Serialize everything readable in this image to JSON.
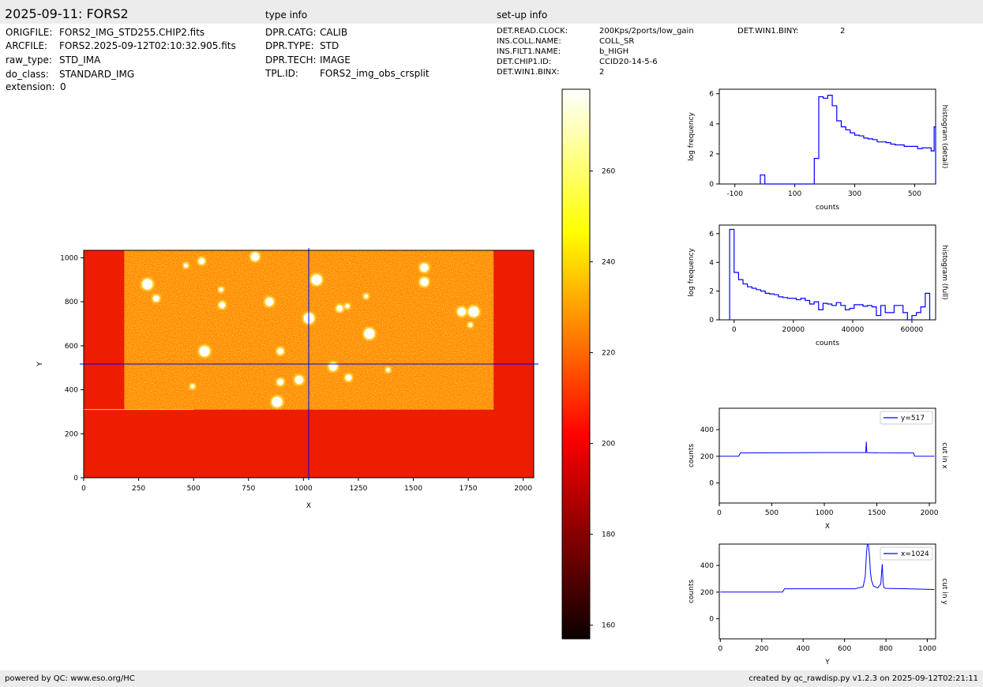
{
  "header": {
    "title": "2025-09-11: FORS2",
    "type_info_title": "type info",
    "setup_info_title": "set-up info"
  },
  "file_info": [
    {
      "key": "ORIGFILE:",
      "value": "FORS2_IMG_STD255.CHIP2.fits"
    },
    {
      "key": "ARCFILE:",
      "value": "FORS2.2025-09-12T02:10:32.905.fits"
    },
    {
      "key": "raw_type:",
      "value": "STD_IMA"
    },
    {
      "key": "do_class:",
      "value": "STANDARD_IMG"
    },
    {
      "key": "extension:",
      "value": "0"
    }
  ],
  "type_info": [
    {
      "key": "DPR.CATG:",
      "value": "CALIB"
    },
    {
      "key": "DPR.TYPE:",
      "value": "STD"
    },
    {
      "key": "DPR.TECH:",
      "value": "IMAGE"
    },
    {
      "key": "TPL.ID:",
      "value": "FORS2_img_obs_crsplit"
    }
  ],
  "setup_info": [
    {
      "key": "DET.READ.CLOCK:",
      "value": "200Kps/2ports/low_gain"
    },
    {
      "key": "INS.COLL.NAME:",
      "value": "COLL_SR"
    },
    {
      "key": "INS.FILT1.NAME:",
      "value": "b_HIGH"
    },
    {
      "key": "DET.CHIP1.ID:",
      "value": "CCID20-14-5-6"
    },
    {
      "key": "DET.WIN1.BINX:",
      "value": "2"
    }
  ],
  "setup_info_extra": [
    {
      "key": "DET.WIN1.BINY:",
      "value": "2"
    }
  ],
  "footer": {
    "left": "powered by QC: www.eso.org/HC",
    "right": "created by qc_rawdisp.py v1.2.3 on 2025-09-12T02:21:11"
  },
  "colors": {
    "series": "#0000ff",
    "header_bar": "#ececec",
    "image_background": "#ee1c00",
    "image_field": "#ff8a00"
  },
  "chart_data": [
    {
      "type": "heatmap",
      "title": "",
      "xlabel": "X",
      "ylabel": "Y",
      "xlim": [
        0,
        2048
      ],
      "ylim": [
        0,
        1034
      ],
      "xticks": [
        0,
        250,
        500,
        750,
        1000,
        1250,
        1500,
        1750,
        2000
      ],
      "yticks": [
        0,
        200,
        400,
        600,
        800,
        1000
      ],
      "crosshair": {
        "x": 1024,
        "y": 517
      },
      "illuminated_region": {
        "x": [
          185,
          1865
        ],
        "y": [
          310,
          1034
        ]
      },
      "stars": [
        [
          465,
          965
        ],
        [
          537,
          985
        ],
        [
          780,
          1005
        ],
        [
          1060,
          900
        ],
        [
          625,
          855
        ],
        [
          630,
          785
        ],
        [
          845,
          800
        ],
        [
          1025,
          725
        ],
        [
          1200,
          780
        ],
        [
          1165,
          770
        ],
        [
          1550,
          890
        ],
        [
          550,
          575
        ],
        [
          495,
          415
        ],
        [
          895,
          435
        ],
        [
          980,
          445
        ],
        [
          880,
          345
        ],
        [
          1385,
          490
        ],
        [
          1205,
          455
        ],
        [
          1720,
          755
        ],
        [
          1775,
          755
        ],
        [
          1760,
          695
        ],
        [
          330,
          815
        ],
        [
          1550,
          955
        ],
        [
          290,
          880
        ],
        [
          1285,
          825
        ],
        [
          895,
          575
        ],
        [
          1135,
          505
        ],
        [
          1300,
          655
        ]
      ],
      "colorbar": {
        "min": 157,
        "max": 278,
        "ticks": [
          160,
          180,
          200,
          220,
          240,
          260
        ],
        "colormap": "hot"
      }
    },
    {
      "type": "bar",
      "title": "",
      "xlabel": "counts",
      "ylabel": "log frequency",
      "side_label": "histogram (detail)",
      "xlim": [
        -152,
        570
      ],
      "ylim": [
        0,
        6.3
      ],
      "xticks": [
        -100,
        100,
        300,
        500
      ],
      "xtick_labels": [
        "-100",
        "100",
        "300",
        "500"
      ],
      "yticks": [
        0,
        2,
        4,
        6
      ],
      "bins": [
        [
          -15,
          0.6
        ],
        [
          0,
          0
        ],
        [
          165,
          1.7
        ],
        [
          180,
          5.8
        ],
        [
          195,
          5.7
        ],
        [
          210,
          5.9
        ],
        [
          225,
          5.2
        ],
        [
          240,
          4.2
        ],
        [
          255,
          3.8
        ],
        [
          270,
          3.6
        ],
        [
          285,
          3.4
        ],
        [
          300,
          3.25
        ],
        [
          315,
          3.2
        ],
        [
          330,
          3.05
        ],
        [
          345,
          3.0
        ],
        [
          360,
          2.95
        ],
        [
          375,
          2.8
        ],
        [
          390,
          2.8
        ],
        [
          405,
          2.75
        ],
        [
          420,
          2.65
        ],
        [
          435,
          2.6
        ],
        [
          450,
          2.6
        ],
        [
          465,
          2.5
        ],
        [
          480,
          2.5
        ],
        [
          495,
          2.5
        ],
        [
          510,
          2.35
        ],
        [
          525,
          2.4
        ],
        [
          540,
          2.4
        ],
        [
          555,
          2.2
        ],
        [
          565,
          3.8
        ]
      ],
      "bin_end": 570
    },
    {
      "type": "bar",
      "title": "",
      "xlabel": "counts",
      "ylabel": "log frequency",
      "side_label": "histogram (full)",
      "xlim": [
        -5000,
        68000
      ],
      "ylim": [
        0,
        6.6
      ],
      "xticks": [
        0,
        20000,
        40000,
        60000
      ],
      "xtick_labels": [
        "0",
        "20000",
        "40000",
        "60000"
      ],
      "yticks": [
        0,
        2,
        4,
        6
      ],
      "bins": [
        [
          -1500,
          6.3
        ],
        [
          0,
          3.3
        ],
        [
          1500,
          2.8
        ],
        [
          3000,
          2.5
        ],
        [
          4500,
          2.3
        ],
        [
          6000,
          2.2
        ],
        [
          7500,
          2.1
        ],
        [
          9000,
          2.0
        ],
        [
          10500,
          1.85
        ],
        [
          12000,
          1.8
        ],
        [
          13500,
          1.75
        ],
        [
          15000,
          1.6
        ],
        [
          16500,
          1.55
        ],
        [
          18000,
          1.5
        ],
        [
          19500,
          1.5
        ],
        [
          21000,
          1.4
        ],
        [
          22500,
          1.5
        ],
        [
          24000,
          1.35
        ],
        [
          25500,
          1.1
        ],
        [
          27000,
          1.25
        ],
        [
          28500,
          0.7
        ],
        [
          30000,
          1.15
        ],
        [
          31500,
          1.1
        ],
        [
          33000,
          1.0
        ],
        [
          34500,
          1.2
        ],
        [
          36000,
          1.0
        ],
        [
          37500,
          0.7
        ],
        [
          39000,
          0.8
        ],
        [
          40500,
          1.05
        ],
        [
          42000,
          1.05
        ],
        [
          43500,
          0.95
        ],
        [
          45000,
          1.0
        ],
        [
          46500,
          0.9
        ],
        [
          48000,
          0.3
        ],
        [
          49500,
          1.0
        ],
        [
          51000,
          0.5
        ],
        [
          52500,
          0.5
        ],
        [
          54000,
          1.0
        ],
        [
          55500,
          1.0
        ],
        [
          57000,
          0.5
        ],
        [
          58500,
          0.0
        ],
        [
          60000,
          0.3
        ],
        [
          61500,
          0.5
        ],
        [
          63000,
          0.9
        ],
        [
          64500,
          1.85
        ]
      ],
      "bin_end": 66000
    },
    {
      "type": "line",
      "title": "",
      "xlabel": "X",
      "ylabel": "counts",
      "side_label": "cut in x",
      "legend": "y=517",
      "legend_position": "upper right",
      "xlim": [
        0,
        2060
      ],
      "ylim": [
        -150,
        560
      ],
      "xticks": [
        0,
        500,
        1000,
        1500,
        2000
      ],
      "yticks": [
        0,
        200,
        400
      ],
      "series": [
        {
          "name": "y=517",
          "x": [
            0,
            185,
            200,
            1000,
            1395,
            1400,
            1405,
            1500,
            1850,
            1860,
            2048
          ],
          "y": [
            200,
            201,
            225,
            228,
            228,
            310,
            228,
            226,
            225,
            200,
            200
          ]
        }
      ]
    },
    {
      "type": "line",
      "title": "",
      "xlabel": "Y",
      "ylabel": "counts",
      "side_label": "cut in y",
      "legend": "x=1024",
      "legend_position": "upper right",
      "xlim": [
        -5,
        1040
      ],
      "ylim": [
        -150,
        560
      ],
      "xticks": [
        0,
        200,
        400,
        600,
        800,
        1000
      ],
      "yticks": [
        0,
        200,
        400
      ],
      "series": [
        {
          "name": "x=1024",
          "x": [
            0,
            300,
            310,
            650,
            690,
            700,
            705,
            710,
            715,
            720,
            725,
            730,
            740,
            760,
            775,
            782,
            786,
            790,
            800,
            900,
            1034
          ],
          "y": [
            200,
            200,
            225,
            225,
            240,
            320,
            470,
            560,
            560,
            480,
            350,
            290,
            245,
            232,
            260,
            410,
            280,
            235,
            228,
            225,
            220
          ]
        }
      ]
    }
  ]
}
